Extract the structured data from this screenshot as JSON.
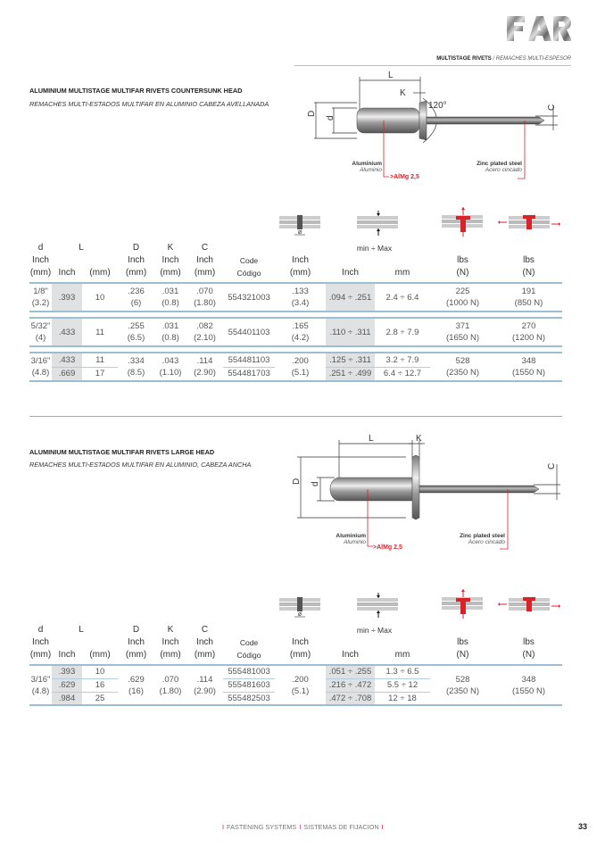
{
  "header": {
    "section": "MULTISTAGE RIVETS",
    "section_es": "/ REMACHES MULTI-ESPESOR",
    "logo_text": "FAR"
  },
  "section1": {
    "title": "ALUMINIUM MULTISTAGE MULTIFAR RIVETS COUNTERSUNK HEAD",
    "subtitle": "REMACHES MULTI-ESTADOS MULTIFAR EN ALUMINIO CABEZA AVELLANADA",
    "diagram": {
      "L": "L",
      "K": "K",
      "angle": "120°",
      "D": "D",
      "d": "d",
      "C": "C",
      "body_material": "Aluminium",
      "body_material_es": "Aluminio",
      "alloy": ">AlMg 2,5",
      "mandrel_material": "Zinc plated steel",
      "mandrel_material_es": "Acero cincado"
    }
  },
  "section2": {
    "title": "ALUMINIUM MULTISTAGE MULTIFAR RIVETS LARGE HEAD",
    "subtitle": "REMACHES MULTI-ESTADOS MULTIFAR  EN ALUMINIO, CABEZA ANCHA",
    "diagram": {
      "L": "L",
      "K": "K",
      "D": "D",
      "d": "d",
      "C": "C",
      "body_material": "Aluminium",
      "body_material_es": "Aluminio",
      "alloy": ">AlMg 2,5",
      "mandrel_material": "Zinc plated steel",
      "mandrel_material_es": "Acero cincado"
    }
  },
  "table_header": {
    "d": [
      "d",
      "Inch",
      "(mm)"
    ],
    "L": "L",
    "L_inch": "Inch",
    "L_mm": "(mm)",
    "D": [
      "D",
      "Inch",
      "(mm)"
    ],
    "K": [
      "K",
      "Inch",
      "(mm)"
    ],
    "C": [
      "C",
      "Inch",
      "(mm)"
    ],
    "code": [
      "Code",
      "Código"
    ],
    "hole_symbol": "ø",
    "hole": [
      "Inch",
      "(mm)"
    ],
    "grip": "min ÷ Max",
    "grip_inch": "Inch",
    "grip_mm": "mm",
    "tensile": [
      "lbs",
      "(N)"
    ],
    "shear": [
      "lbs",
      "(N)"
    ]
  },
  "colors": {
    "rule": "#9dbdd3",
    "shade": "#dfe1e3",
    "accent_red": "#d8232a"
  },
  "table1": {
    "groups": [
      {
        "d": "1/8\"",
        "d_mm": "(3.2)",
        "D": ".236",
        "D_mm": "(6)",
        "K": ".031",
        "K_mm": "(0.8)",
        "C": ".070",
        "C_mm": "(1.80)",
        "hole": ".133",
        "hole_mm": "(3.4)",
        "tensile": "225",
        "tensile_n": "(1000 N)",
        "shear": "191",
        "shear_n": "(850 N)",
        "rows": [
          {
            "L_inch": ".393",
            "L_mm": "10",
            "code": "554321003",
            "grip_inch": ".094 ÷ .251",
            "grip_mm": "2.4 ÷ 6.4"
          }
        ]
      },
      {
        "d": "5/32\"",
        "d_mm": "(4)",
        "D": ".255",
        "D_mm": "(6.5)",
        "K": ".031",
        "K_mm": "(0.8)",
        "C": ".082",
        "C_mm": "(2.10)",
        "hole": ".165",
        "hole_mm": "(4.2)",
        "tensile": "371",
        "tensile_n": "(1650 N)",
        "shear": "270",
        "shear_n": "(1200 N)",
        "rows": [
          {
            "L_inch": ".433",
            "L_mm": "11",
            "code": "554401103",
            "grip_inch": ".110 ÷ .311",
            "grip_mm": "2.8 ÷ 7.9"
          }
        ]
      },
      {
        "d": "3/16\"",
        "d_mm": "(4.8)",
        "D": ".334",
        "D_mm": "(8.5)",
        "K": ".043",
        "K_mm": "(1.10)",
        "C": ".114",
        "C_mm": "(2.90)",
        "hole": ".200",
        "hole_mm": "(5.1)",
        "tensile": "528",
        "tensile_n": "(2350 N)",
        "shear": "348",
        "shear_n": "(1550 N)",
        "rows": [
          {
            "L_inch": ".433",
            "L_mm": "11",
            "code": "554481103",
            "grip_inch": ".125 ÷ .311",
            "grip_mm": "3.2 ÷ 7.9"
          },
          {
            "L_inch": ".669",
            "L_mm": "17",
            "code": "554481703",
            "grip_inch": ".251 ÷ .499",
            "grip_mm": "6.4 ÷ 12.7"
          }
        ]
      }
    ]
  },
  "table2": {
    "groups": [
      {
        "d": "3/16\"",
        "d_mm": "(4.8)",
        "D": ".629",
        "D_mm": "(16)",
        "K": ".070",
        "K_mm": "(1.80)",
        "C": ".114",
        "C_mm": "(2.90)",
        "hole": ".200",
        "hole_mm": "(5.1)",
        "tensile": "528",
        "tensile_n": "(2350 N)",
        "shear": "348",
        "shear_n": "(1550 N)",
        "rows": [
          {
            "L_inch": ".393",
            "L_mm": "10",
            "code": "555481003",
            "grip_inch": ".051 ÷ .255",
            "grip_mm": "1.3 ÷ 6.5"
          },
          {
            "L_inch": ".629",
            "L_mm": "16",
            "code": "555481603",
            "grip_inch": ".216 ÷ .472",
            "grip_mm": "5.5 ÷ 12"
          },
          {
            "L_inch": ".984",
            "L_mm": "25",
            "code": "555482503",
            "grip_inch": ".472 ÷ .708",
            "grip_mm": "12 ÷ 18"
          }
        ]
      }
    ]
  },
  "footer": {
    "left": "FASTENING SYSTEMS",
    "right": "SISTEMAS DE FIJACION",
    "separator": "I",
    "page_number": "33"
  }
}
